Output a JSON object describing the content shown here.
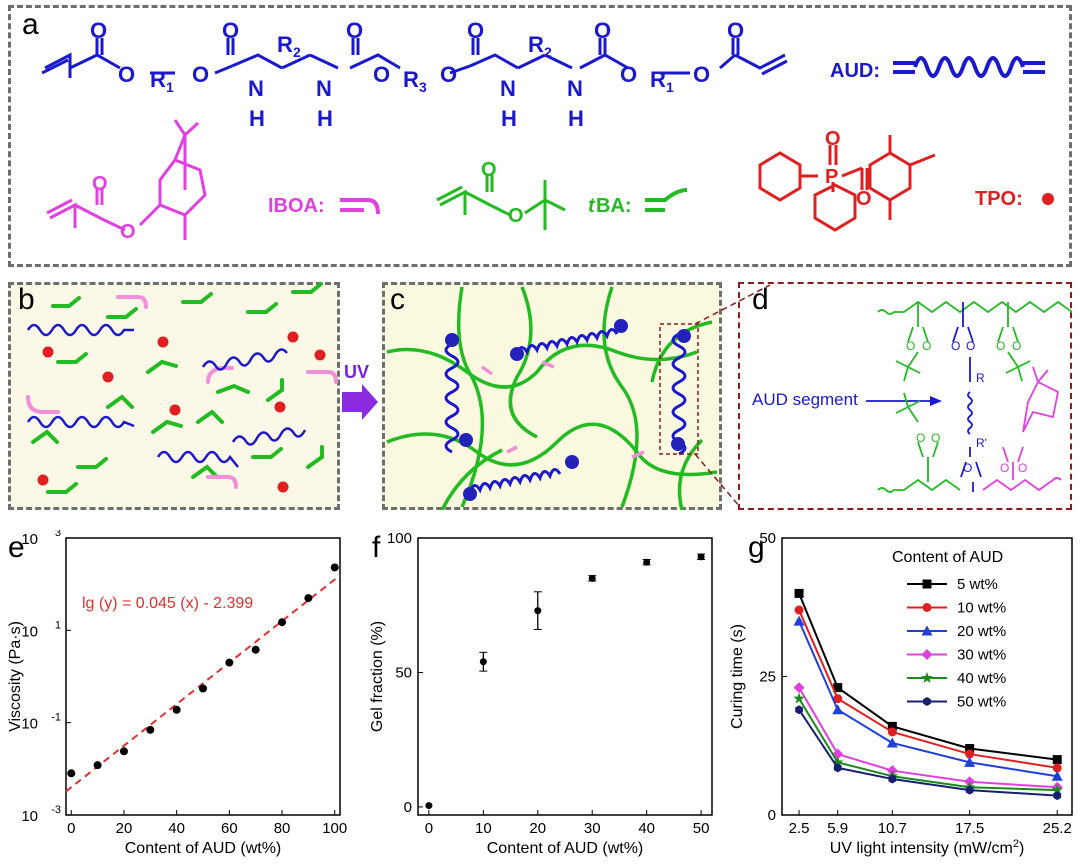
{
  "panel_labels": {
    "a": "a",
    "b": "b",
    "c": "c",
    "d": "d",
    "e": "e",
    "f": "f",
    "g": "g"
  },
  "panel_a": {
    "substituents": {
      "r1": "R",
      "r1_sub": "1",
      "r2": "R",
      "r2_sub": "2",
      "r3": "R",
      "r3_sub": "3",
      "n": "N",
      "h": "H",
      "o": "O"
    },
    "aud_label": "AUD:",
    "ibo_label": "IBOA:",
    "tba_label_italic": "t",
    "tba_label": "BA:",
    "tpo_label": "TPO:",
    "tpo_p": "P",
    "colors": {
      "aud": "#1a1acc",
      "iboa": "#e040e0",
      "tba": "#22bb22",
      "tpo": "#e02020"
    }
  },
  "panel_b": {
    "uv_label": "UV"
  },
  "panel_d": {
    "aud_segment_label": "AUD segment",
    "r": "R",
    "r_prime": "R'"
  },
  "chart_data": [
    {
      "type": "scatter",
      "panel": "e",
      "xlabel": "Content of AUD (wt%)",
      "ylabel": "Viscosity (Pa·s)",
      "yscale": "log",
      "xlim": [
        -2,
        102
      ],
      "ylim": [
        0.001,
        1000
      ],
      "xticks": [
        0,
        20,
        40,
        60,
        80,
        100
      ],
      "ytick_labels": [
        {
          "base": "10",
          "exp": "-3",
          "v": 0.001
        },
        {
          "base": "10",
          "exp": "-1",
          "v": 0.1
        },
        {
          "base": "10",
          "exp": "1",
          "v": 10
        },
        {
          "base": "10",
          "exp": "3",
          "v": 1000
        }
      ],
      "x": [
        0,
        10,
        20,
        30,
        40,
        50,
        60,
        70,
        80,
        90,
        100
      ],
      "y": [
        0.008,
        0.012,
        0.024,
        0.07,
        0.19,
        0.55,
        2.0,
        3.8,
        15,
        50,
        230
      ],
      "fit_label": "lg (y) = 0.045 (x) - 2.399",
      "fit": {
        "slope": 0.045,
        "intercept": -2.399,
        "color": "#e03030"
      }
    },
    {
      "type": "scatter",
      "panel": "f",
      "xlabel": "Content of AUD (wt%)",
      "ylabel": "Gel fraction (%)",
      "xlim": [
        -2,
        52
      ],
      "ylim": [
        -3,
        100
      ],
      "xticks": [
        0,
        10,
        20,
        30,
        40,
        50
      ],
      "yticks": [
        0,
        50,
        100
      ],
      "x": [
        0,
        10,
        20,
        30,
        40,
        50
      ],
      "y": [
        0.5,
        54,
        73,
        85,
        91,
        93
      ],
      "err": [
        0,
        3.5,
        7,
        1,
        1,
        1
      ]
    },
    {
      "type": "line",
      "panel": "g",
      "xlabel": "UV light intensity (mW/cm",
      "xlabel_sup": "2",
      "xlabel_end": ")",
      "ylabel": "Curing time (s)",
      "categories": [
        "2.5",
        "5.9",
        "10.7",
        "17.5",
        "25.2"
      ],
      "ylim": [
        0,
        50
      ],
      "yticks": [
        0,
        25,
        50
      ],
      "legend_title": "Content of AUD",
      "legend_position": "top-right",
      "series": [
        {
          "name": "5 wt%",
          "color": "#000000",
          "marker": "square",
          "values": [
            40,
            23,
            16,
            12,
            10
          ]
        },
        {
          "name": "10 wt%",
          "color": "#e02020",
          "marker": "circle",
          "values": [
            37,
            21,
            15,
            11,
            8.5
          ]
        },
        {
          "name": "20 wt%",
          "color": "#1f3fd8",
          "marker": "triangle",
          "values": [
            35,
            19,
            13,
            9.5,
            7
          ]
        },
        {
          "name": "30 wt%",
          "color": "#e040e0",
          "marker": "diamond",
          "values": [
            23,
            11,
            8,
            6,
            5
          ]
        },
        {
          "name": "40 wt%",
          "color": "#1a8a1a",
          "marker": "star",
          "values": [
            21,
            9.5,
            7,
            5,
            4.5
          ]
        },
        {
          "name": "50 wt%",
          "color": "#16206e",
          "marker": "hexagon",
          "values": [
            19,
            8.5,
            6.5,
            4.5,
            3.5
          ]
        }
      ]
    }
  ]
}
